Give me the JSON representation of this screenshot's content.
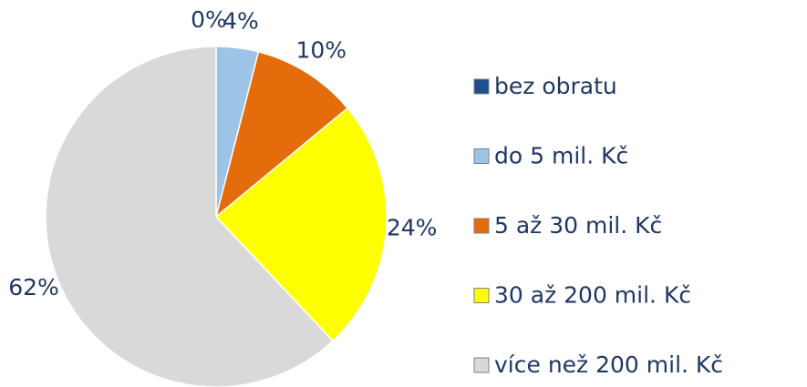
{
  "chart_data": {
    "type": "pie",
    "categories": [
      "bez obratu",
      "do 5 mil. Kč",
      "5 až 30 mil. Kč",
      "30 až 200 mil. Kč",
      "více než 200 mil. Kč"
    ],
    "values": [
      0,
      4,
      10,
      24,
      62
    ],
    "value_labels": [
      "0%",
      "4%",
      "10%",
      "24%",
      "62%"
    ],
    "colors": [
      "#1f4e8c",
      "#9dc3e6",
      "#e46c0a",
      "#ffff00",
      "#d9d9d9"
    ],
    "legend": "right"
  }
}
